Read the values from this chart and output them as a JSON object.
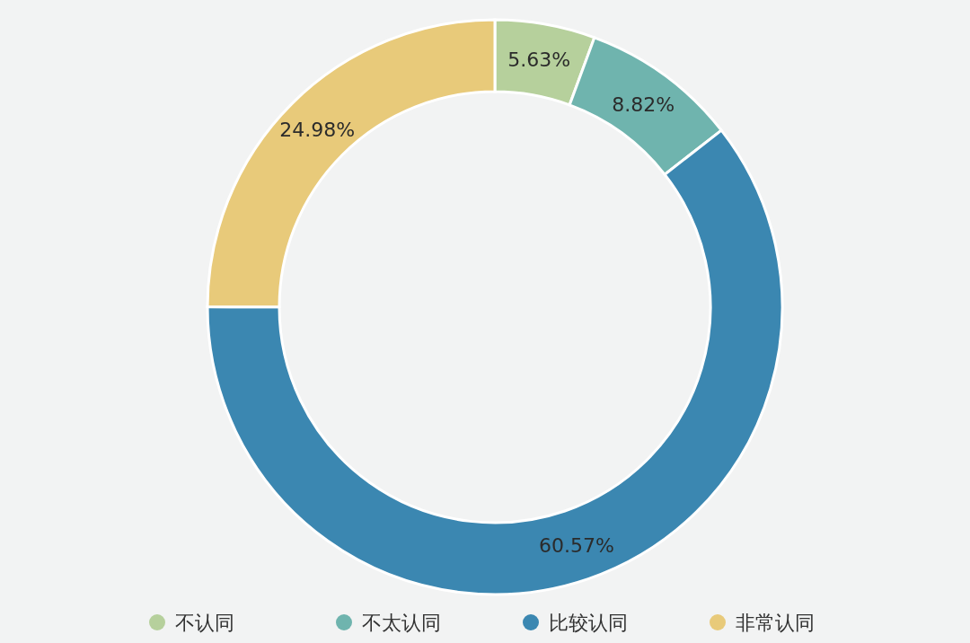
{
  "chart_data": {
    "type": "donut",
    "categories": [
      "不认同",
      "不太认同",
      "比较认同",
      "非常认同"
    ],
    "values": [
      5.63,
      8.82,
      60.57,
      24.98
    ],
    "colors": [
      "#b6d09c",
      "#6fb4ae",
      "#3b87b1",
      "#e8ca7a"
    ],
    "value_labels": [
      "5.63%",
      "8.82%",
      "60.57%",
      "24.98%"
    ],
    "legend": "bottom"
  }
}
